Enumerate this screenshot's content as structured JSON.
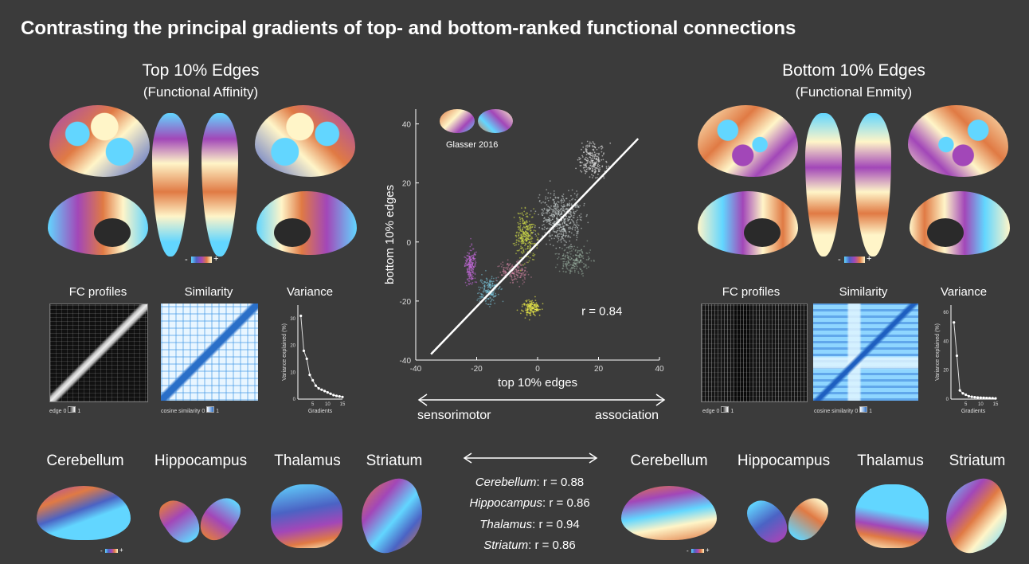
{
  "title": "Contrasting the principal gradients of top- and bottom-ranked functional connections",
  "left": {
    "heading": "Top 10% Edges",
    "subheading": "(Functional Affinity)",
    "colorbar_minus": "-",
    "colorbar_plus": "+",
    "fc_label": "FC profiles",
    "sim_label": "Similarity",
    "var_label": "Variance",
    "fc_scale": "edge",
    "fc_scale_min": "0",
    "fc_scale_max": "1",
    "sim_scale": "cosine similarity",
    "sim_scale_min": "0",
    "sim_scale_max": "1",
    "var_ylabel": "Variance explained (%)",
    "var_xlabel": "Gradients",
    "var_yticks": [
      "0",
      "10",
      "20",
      "30"
    ],
    "var_xticks": [
      "5",
      "10",
      "15"
    ],
    "var_values": [
      31,
      18,
      15,
      9,
      7,
      5,
      4,
      3.5,
      3,
      2.5,
      2,
      1.5,
      1.2,
      1,
      0.8
    ]
  },
  "right": {
    "heading": "Bottom 10% Edges",
    "subheading": "(Functional Enmity)",
    "colorbar_minus": "-",
    "colorbar_plus": "+",
    "fc_label": "FC profiles",
    "sim_label": "Similarity",
    "var_label": "Variance",
    "fc_scale": "edge",
    "fc_scale_min": "0",
    "fc_scale_max": "1",
    "sim_scale": "cosine similarity",
    "sim_scale_min": "0",
    "sim_scale_max": "1",
    "var_ylabel": "Variance explained (%)",
    "var_xlabel": "Gradients",
    "var_yticks": [
      "0",
      "20",
      "40",
      "60"
    ],
    "var_xticks": [
      "5",
      "10",
      "15"
    ],
    "var_values": [
      53,
      30,
      6,
      4,
      3,
      2,
      1.6,
      1.3,
      1.1,
      1,
      0.9,
      0.8,
      0.7,
      0.6,
      0.5
    ]
  },
  "scatter": {
    "xlabel": "top 10% edges",
    "ylabel": "bottom 10% edges",
    "xticks": [
      "-40",
      "-20",
      "0",
      "20",
      "40"
    ],
    "yticks": [
      "40",
      "20",
      "0",
      "-20",
      "-40"
    ],
    "xlim": [
      -40,
      40
    ],
    "ylim": [
      -40,
      45
    ],
    "r_label": "r = 0.84",
    "atlas_label": "Glasser 2016",
    "axis_left": "sensorimotor",
    "axis_right": "association"
  },
  "subcortical": {
    "left_labels": [
      "Cerebellum",
      "Hippocampus",
      "Thalamus",
      "Striatum"
    ],
    "right_labels": [
      "Cerebellum",
      "Hippocampus",
      "Thalamus",
      "Striatum"
    ],
    "colorbar_minus": "-",
    "colorbar_plus": "+",
    "correlations": [
      {
        "name": "Cerebellum",
        "value": ": r = 0.88"
      },
      {
        "name": "Hippocampus",
        "value": ": r = 0.86"
      },
      {
        "name": "Thalamus",
        "value": ": r = 0.94"
      },
      {
        "name": "Striatum",
        "value": ": r = 0.86"
      }
    ]
  },
  "colors": {
    "background": "#3b3b3b",
    "cyan": "#62d6ff",
    "blue": "#4b63c4",
    "purple": "#a247b8",
    "orange": "#e07a44",
    "cream": "#fff5c8"
  }
}
